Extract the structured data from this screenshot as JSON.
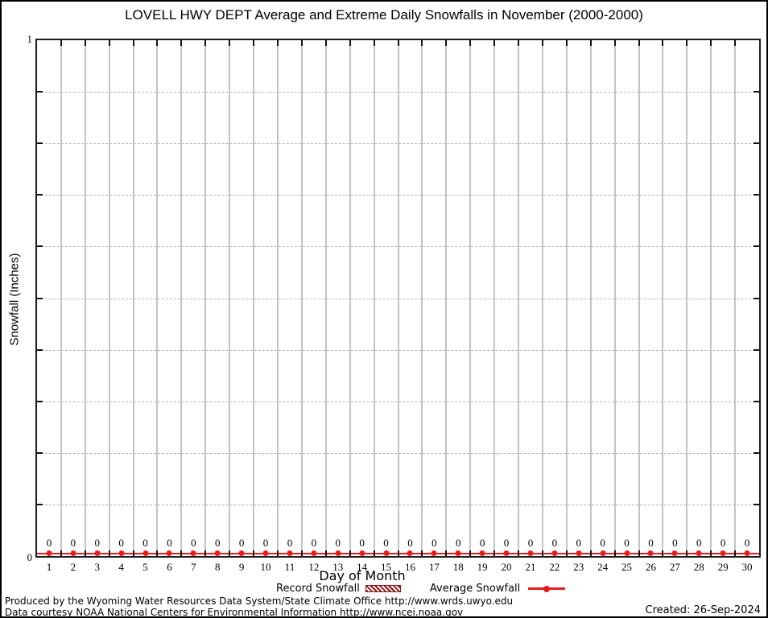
{
  "title": "LOVELL HWY DEPT Average and Extreme Daily Snowfalls in November (2000-2000)",
  "y_axis": {
    "label": "Snowfall (Inches)",
    "top_tick": "1",
    "bottom_tick": "0"
  },
  "x_axis": {
    "label": "Day of Month"
  },
  "legend": {
    "record_label": "Record Snowfall",
    "average_label": "Average Snowfall"
  },
  "footer": {
    "line1": "Produced by the Wyoming Water Resources Data System/State Climate Office http://www.wrds.uwyo.edu",
    "line2": "Data courtesy NOAA National Centers for Environmental Information http://www.ncei.noaa.gov",
    "created": "Created: 26-Sep-2024"
  },
  "colors": {
    "average": "#e81c1c",
    "record_fill": "#8c1616",
    "grid_solid": "#c3c3c3",
    "grid_dashed": "#b6b6b6"
  },
  "chart_data": {
    "type": "line",
    "title": "LOVELL HWY DEPT Average and Extreme Daily Snowfalls in November (2000-2000)",
    "xlabel": "Day of Month",
    "ylabel": "Snowfall (Inches)",
    "ylim": [
      0,
      1
    ],
    "xlim": [
      0.5,
      30.5
    ],
    "grid": "on",
    "legend_position": "bottom",
    "x": [
      1,
      2,
      3,
      4,
      5,
      6,
      7,
      8,
      9,
      10,
      11,
      12,
      13,
      14,
      15,
      16,
      17,
      18,
      19,
      20,
      21,
      22,
      23,
      24,
      25,
      26,
      27,
      28,
      29,
      30
    ],
    "series": [
      {
        "name": "Record Snowfall",
        "type": "bar-hatched",
        "values": [
          0,
          0,
          0,
          0,
          0,
          0,
          0,
          0,
          0,
          0,
          0,
          0,
          0,
          0,
          0,
          0,
          0,
          0,
          0,
          0,
          0,
          0,
          0,
          0,
          0,
          0,
          0,
          0,
          0,
          0
        ]
      },
      {
        "name": "Average Snowfall",
        "type": "line-marker",
        "values": [
          0,
          0,
          0,
          0,
          0,
          0,
          0,
          0,
          0,
          0,
          0,
          0,
          0,
          0,
          0,
          0,
          0,
          0,
          0,
          0,
          0,
          0,
          0,
          0,
          0,
          0,
          0,
          0,
          0,
          0
        ]
      }
    ],
    "point_labels": [
      "0",
      "0",
      "0",
      "0",
      "0",
      "0",
      "0",
      "0",
      "0",
      "0",
      "0",
      "0",
      "0",
      "0",
      "0",
      "0",
      "0",
      "0",
      "0",
      "0",
      "0",
      "0",
      "0",
      "0",
      "0",
      "0",
      "0",
      "0",
      "0",
      "0"
    ]
  }
}
